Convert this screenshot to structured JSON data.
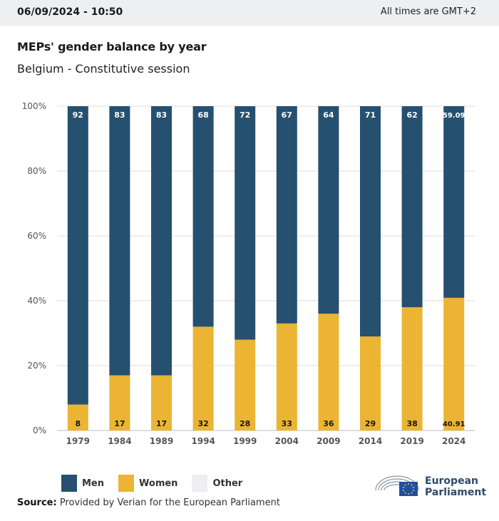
{
  "header": {
    "date_time": "06/09/2024 - 10:50",
    "timezone_note": "All times are GMT+2"
  },
  "chart_title": "MEPs' gender balance by year",
  "chart_subtitle": "Belgium - Constitutive session",
  "colors": {
    "men": "#26506f",
    "women": "#ebb433",
    "other": "#edeef0",
    "grid": "#dcdcdc"
  },
  "chart_data": {
    "type": "bar",
    "stacked": true,
    "categories": [
      "1979",
      "1984",
      "1989",
      "1994",
      "1999",
      "2004",
      "2009",
      "2014",
      "2019",
      "2024"
    ],
    "series": [
      {
        "name": "Women",
        "values": [
          8,
          17,
          17,
          32,
          28,
          33,
          36,
          29,
          38,
          40.91
        ]
      },
      {
        "name": "Men",
        "values": [
          92,
          83,
          83,
          68,
          72,
          67,
          64,
          71,
          62,
          59.09
        ]
      },
      {
        "name": "Other",
        "values": [
          0,
          0,
          0,
          0,
          0,
          0,
          0,
          0,
          0,
          0
        ]
      }
    ],
    "title": "MEPs' gender balance by year",
    "subtitle": "Belgium - Constitutive session",
    "xlabel": "",
    "ylabel": "",
    "ylim": [
      0,
      100
    ],
    "yticks": [
      "0%",
      "20%",
      "40%",
      "60%",
      "80%",
      "100%"
    ],
    "grid": true,
    "legend": "bottom-left"
  },
  "legend": {
    "men": "Men",
    "women": "Women",
    "other": "Other"
  },
  "source": {
    "prefix": "Source:",
    "text": "Provided by Verian for the European Parliament"
  },
  "logo": {
    "line1": "European",
    "line2": "Parliament"
  }
}
